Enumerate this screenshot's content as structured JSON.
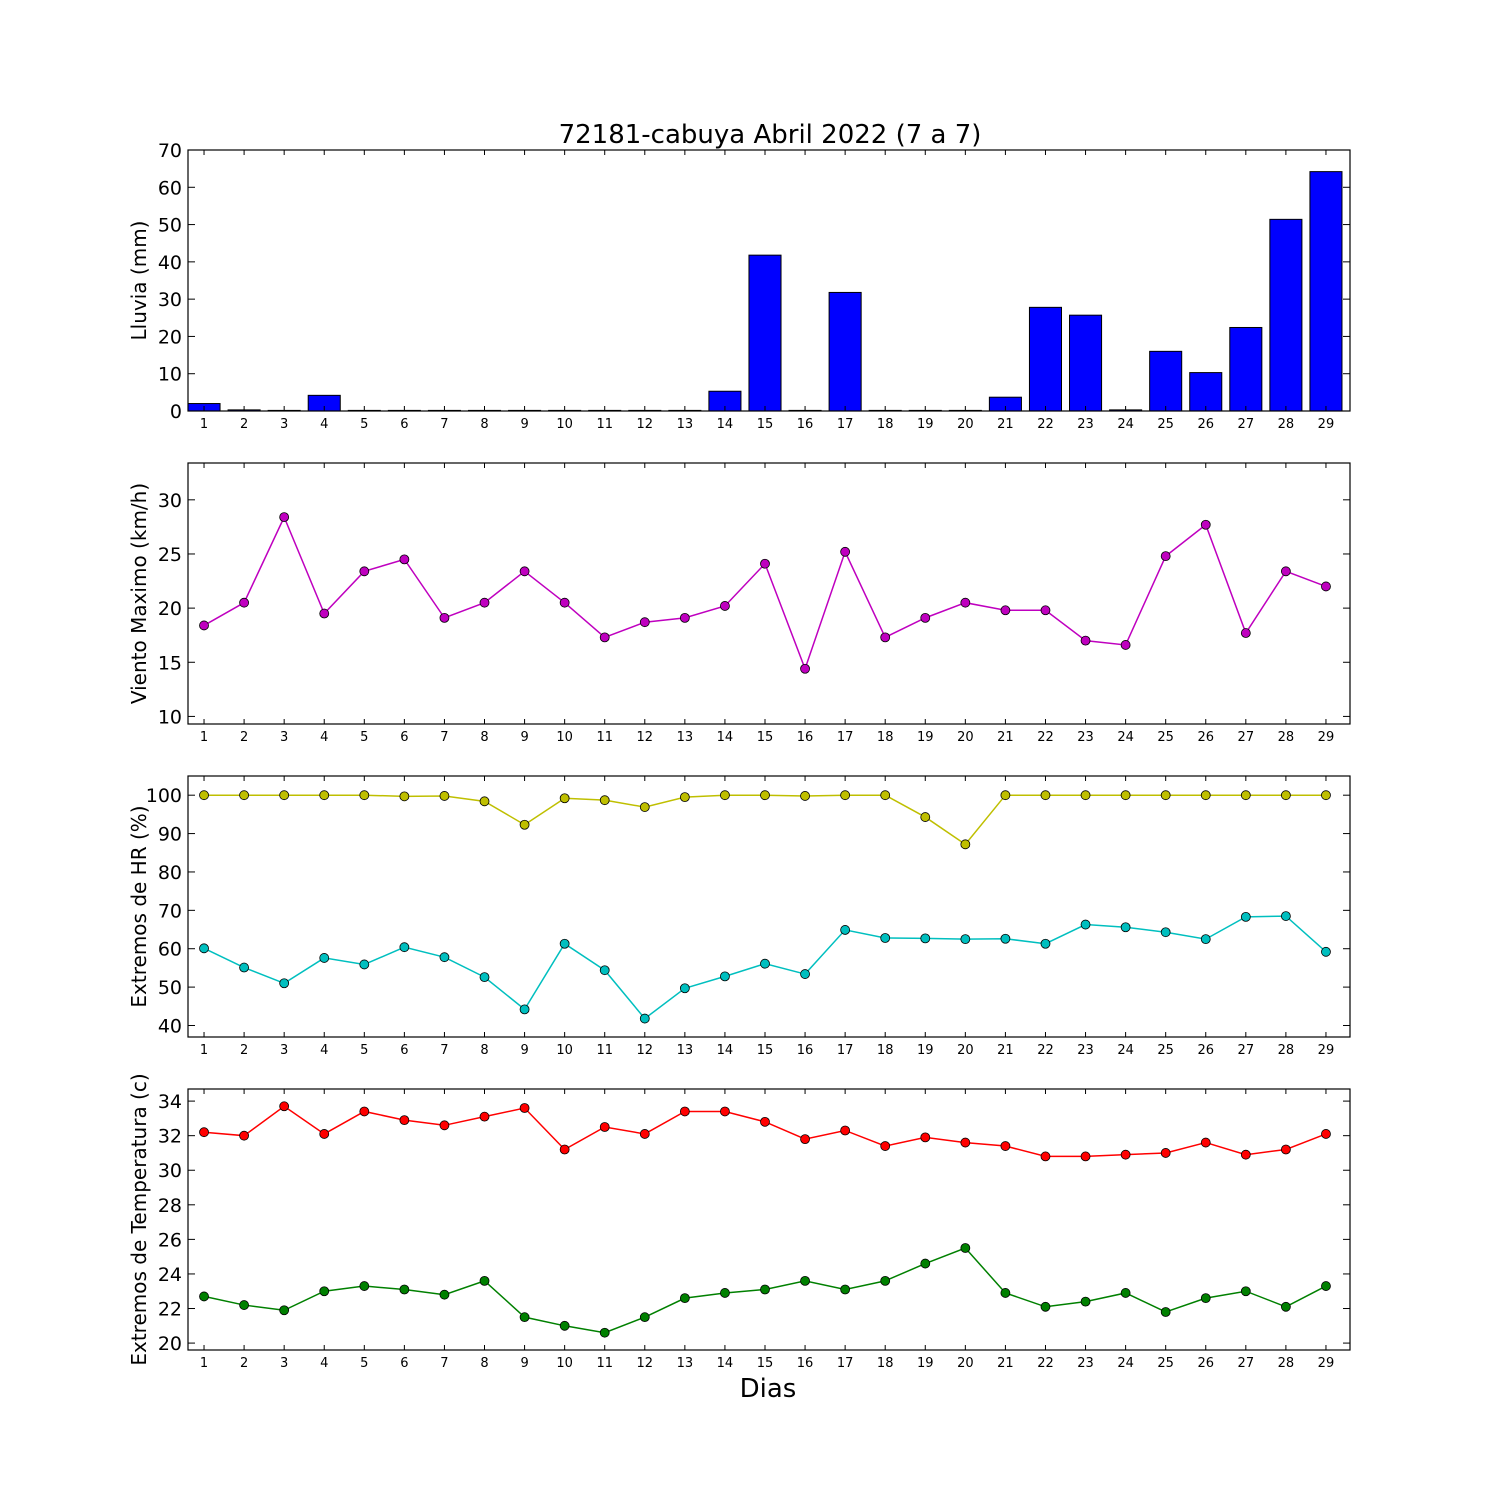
{
  "title": "72181-cabuya Abril 2022  (7 a 7)",
  "xlabel": "Dias",
  "days": [
    1,
    2,
    3,
    4,
    5,
    6,
    7,
    8,
    9,
    10,
    11,
    12,
    13,
    14,
    15,
    16,
    17,
    18,
    19,
    20,
    21,
    22,
    23,
    24,
    25,
    26,
    27,
    28,
    29
  ],
  "chart_data": [
    {
      "type": "bar",
      "ylabel": "Lluvia (mm)",
      "ylim": [
        0,
        70
      ],
      "yticks": [
        0,
        10,
        20,
        30,
        40,
        50,
        60,
        70
      ],
      "grid": false,
      "series": [
        {
          "name": "",
          "color": "#0000ff",
          "values": [
            2.0,
            0.3,
            0,
            4.2,
            0,
            0,
            0,
            0,
            0,
            0,
            0,
            0,
            0,
            5.3,
            41.8,
            0,
            31.8,
            0,
            0,
            0,
            3.7,
            27.8,
            25.7,
            0.3,
            16.0,
            10.3,
            22.4,
            51.4,
            64.2
          ]
        }
      ]
    },
    {
      "type": "line",
      "ylabel": "Viento Maximo (km/h)",
      "ylim": [
        9.3,
        33.4
      ],
      "yticks": [
        10,
        15,
        20,
        25,
        30
      ],
      "grid": false,
      "series": [
        {
          "name": "",
          "color": "#bf00bf",
          "values": [
            18.4,
            20.5,
            28.4,
            19.5,
            23.4,
            24.5,
            19.1,
            20.5,
            23.4,
            20.5,
            17.3,
            18.7,
            19.1,
            20.2,
            24.1,
            14.4,
            25.2,
            17.3,
            19.1,
            20.5,
            19.8,
            19.8,
            17.0,
            16.6,
            24.8,
            27.7,
            17.7,
            23.4,
            22.0
          ]
        }
      ]
    },
    {
      "type": "line",
      "ylabel": "Extremos de HR (%)",
      "ylim": [
        37,
        105
      ],
      "yticks": [
        40,
        50,
        60,
        70,
        80,
        90,
        100
      ],
      "grid": false,
      "series": [
        {
          "name": "",
          "color": "#bfbf00",
          "values": [
            100,
            100,
            100,
            100,
            100,
            99.7,
            99.8,
            98.4,
            92.3,
            99.2,
            98.7,
            96.9,
            99.5,
            100,
            100,
            99.8,
            100,
            100,
            94.3,
            87.2,
            100,
            100,
            100,
            100,
            100,
            100,
            100,
            100,
            100
          ]
        },
        {
          "name": "",
          "color": "#00bfbf",
          "values": [
            60.1,
            55.1,
            51.0,
            57.6,
            55.9,
            60.4,
            57.8,
            52.6,
            44.2,
            61.3,
            54.4,
            41.8,
            49.7,
            52.8,
            56.1,
            53.4,
            64.9,
            62.8,
            62.7,
            62.5,
            62.6,
            61.3,
            66.3,
            65.6,
            64.3,
            62.5,
            68.3,
            68.5,
            59.2
          ]
        }
      ]
    },
    {
      "type": "line",
      "ylabel": "Extremos de Temperatura (c)",
      "ylim": [
        19.6,
        34.7
      ],
      "yticks": [
        20,
        22,
        24,
        26,
        28,
        30,
        32,
        34
      ],
      "grid": false,
      "series": [
        {
          "name": "",
          "color": "#ff0000",
          "values": [
            32.2,
            32.0,
            33.7,
            32.1,
            33.4,
            32.9,
            32.6,
            33.1,
            33.6,
            31.2,
            32.5,
            32.1,
            33.4,
            33.4,
            32.8,
            31.8,
            32.3,
            31.4,
            31.9,
            31.6,
            31.4,
            30.8,
            30.8,
            30.9,
            31.0,
            31.6,
            30.9,
            31.2,
            32.1
          ]
        },
        {
          "name": "",
          "color": "#008000",
          "values": [
            22.7,
            22.2,
            21.9,
            23.0,
            23.3,
            23.1,
            22.8,
            23.6,
            21.5,
            21.0,
            20.6,
            21.5,
            22.6,
            22.9,
            23.1,
            23.6,
            23.1,
            23.6,
            24.6,
            25.5,
            22.9,
            22.1,
            22.4,
            22.9,
            21.8,
            22.6,
            23.0,
            22.1,
            23.3
          ]
        }
      ]
    }
  ]
}
